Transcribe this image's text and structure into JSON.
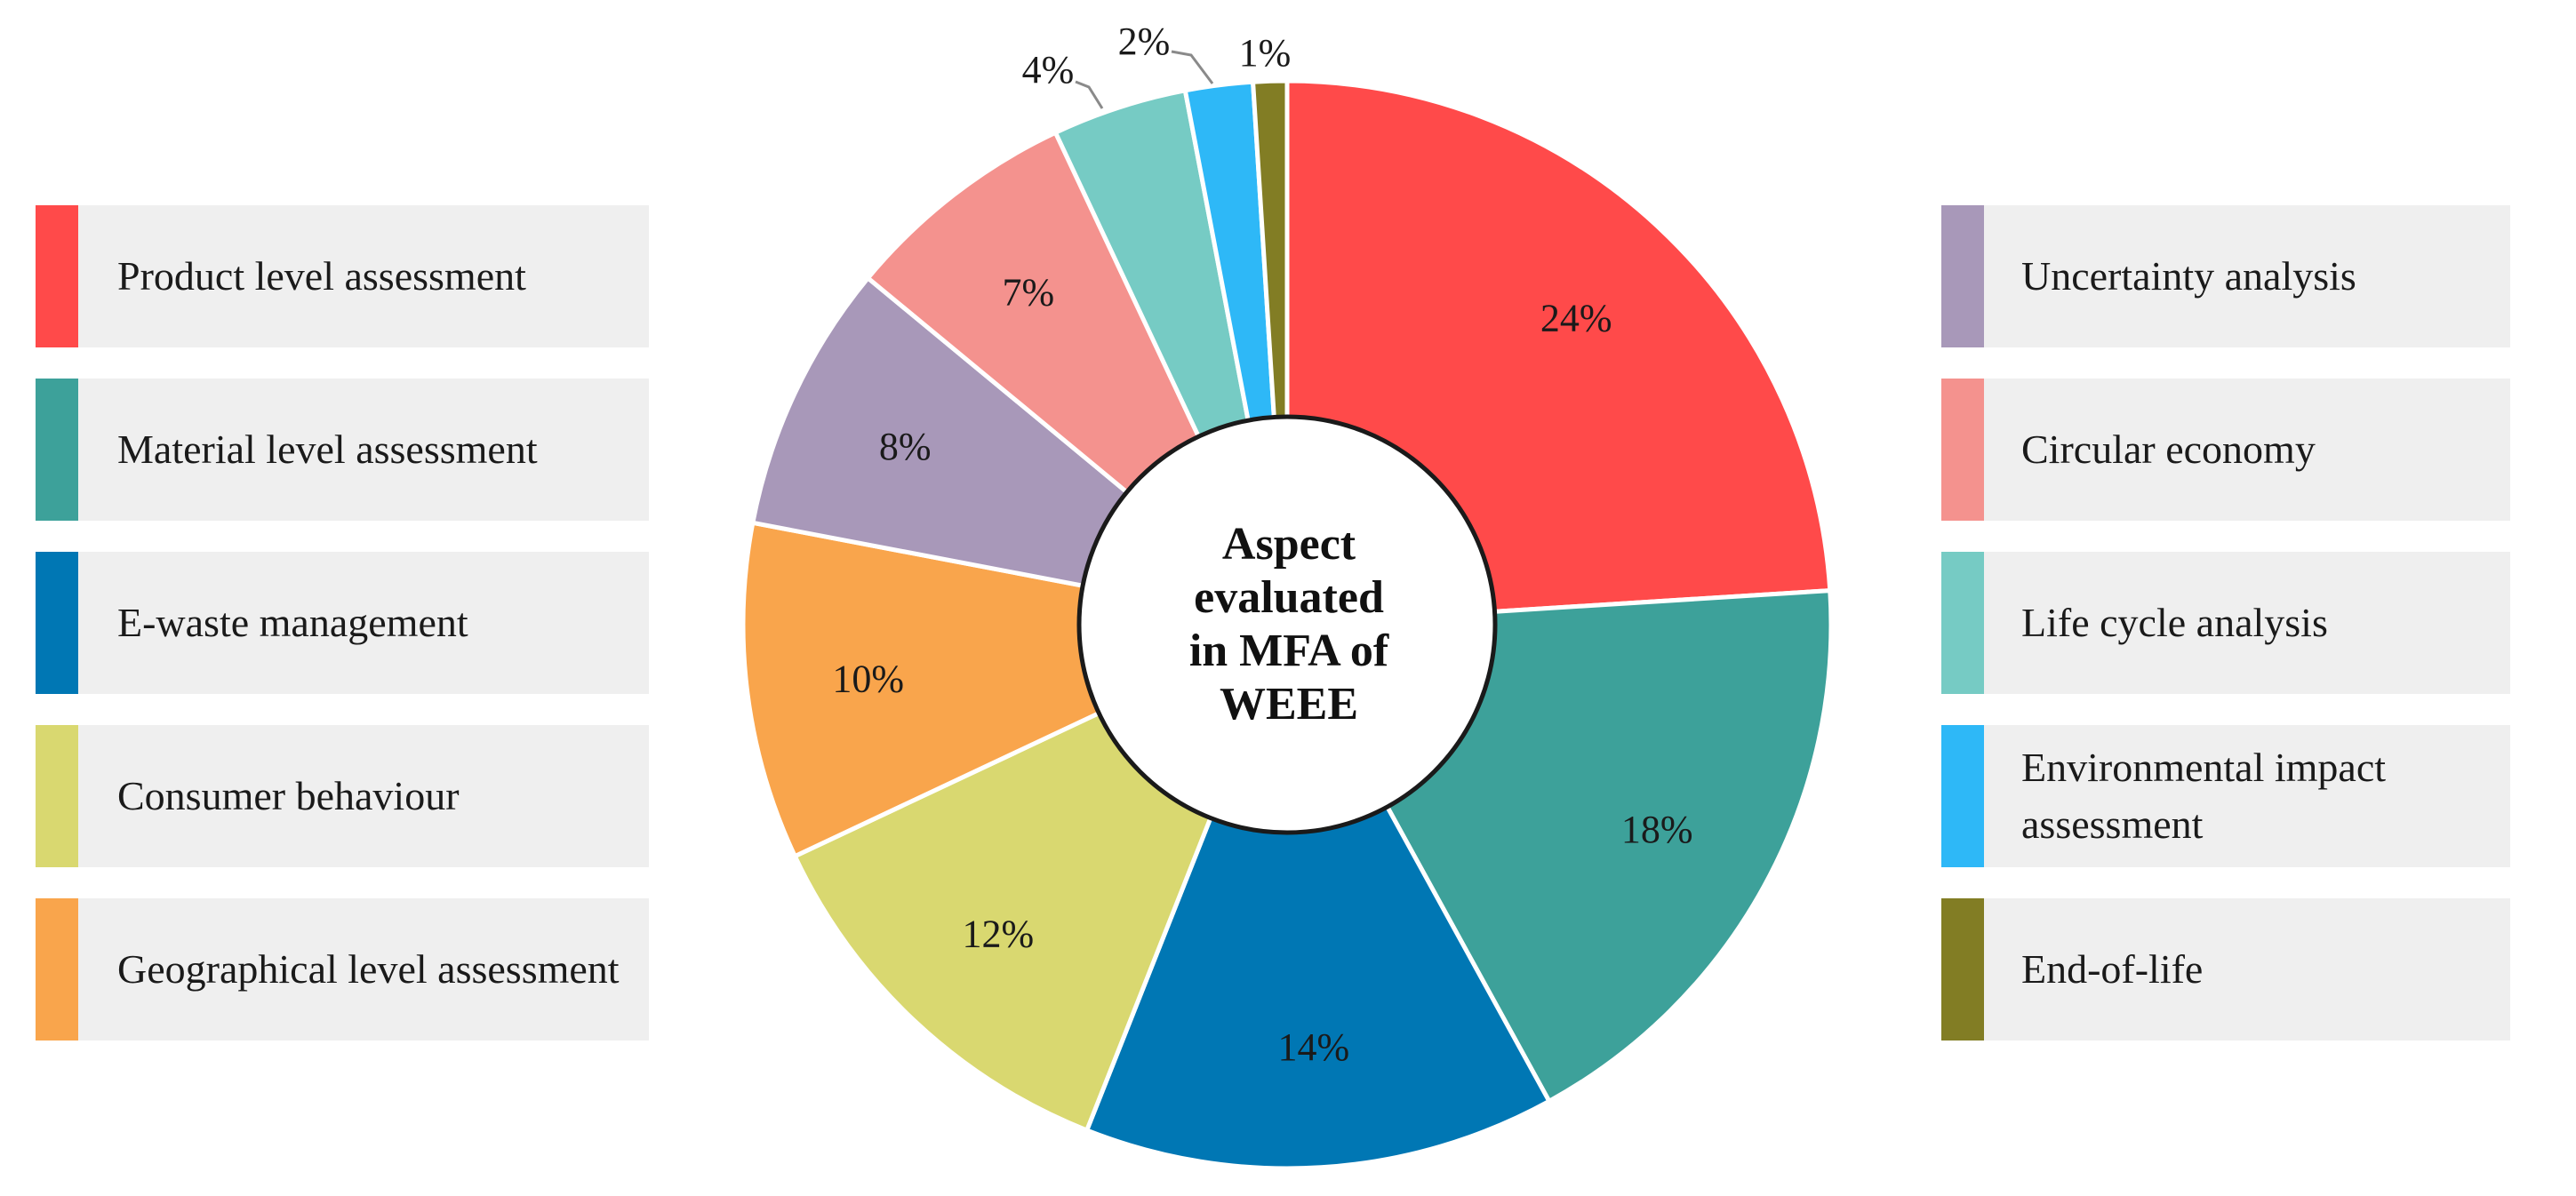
{
  "chart_data": {
    "type": "pie",
    "title": "Aspect evaluated in MFA of WEEE",
    "slices": [
      {
        "name": "Product level assessment",
        "value": 24,
        "label": "24%",
        "color": "#ff4a4a"
      },
      {
        "name": "Material level assessment",
        "value": 18,
        "label": "18%",
        "color": "#3da19a"
      },
      {
        "name": "E-waste management",
        "value": 14,
        "label": "14%",
        "color": "#0077b4"
      },
      {
        "name": "Consumer behaviour",
        "value": 12,
        "label": "12%",
        "color": "#d9d870"
      },
      {
        "name": "Geographical level assessment",
        "value": 10,
        "label": "10%",
        "color": "#f9a54c"
      },
      {
        "name": "Uncertainty analysis",
        "value": 8,
        "label": "8%",
        "color": "#a898b9"
      },
      {
        "name": "Circular economy",
        "value": 7,
        "label": "7%",
        "color": "#f4928e"
      },
      {
        "name": "Life cycle analysis",
        "value": 4,
        "label": "4%",
        "color": "#76cbc4"
      },
      {
        "name": "Environmental impact assessment",
        "value": 2,
        "label": "2%",
        "color": "#2eb8f7"
      },
      {
        "name": "End-of-life",
        "value": 1,
        "label": "1%",
        "color": "#827d24"
      }
    ],
    "legend_placement": "left and right"
  },
  "legend": {
    "left": [
      {
        "label": "Product level assessment",
        "color": "#ff4a4a"
      },
      {
        "label": "Material level assessment",
        "color": "#3da19a"
      },
      {
        "label": "E-waste management",
        "color": "#0077b4"
      },
      {
        "label": "Consumer behaviour",
        "color": "#d9d870"
      },
      {
        "label": "Geographical level assessment",
        "color": "#f9a54c"
      }
    ],
    "right": [
      {
        "label": "Uncertainty analysis",
        "color": "#a898b9"
      },
      {
        "label": "Circular economy",
        "color": "#f4928e"
      },
      {
        "label": "Life cycle analysis",
        "color": "#76cbc4"
      },
      {
        "label": "Environmental impact assessment",
        "color": "#2eb8f7"
      },
      {
        "label": "End-of-life",
        "color": "#827d24"
      }
    ]
  }
}
